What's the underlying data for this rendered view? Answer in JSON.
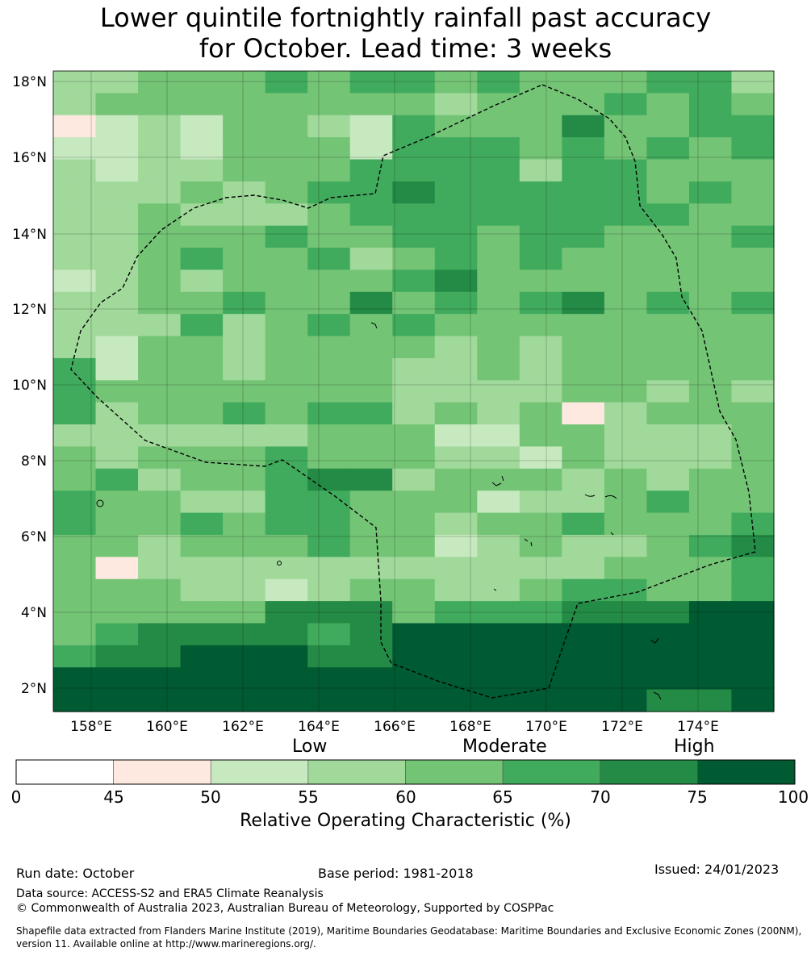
{
  "title_line1": "Lower quintile fortnightly rainfall past accuracy",
  "title_line2": "for October. Lead time: 3 weeks",
  "lat_labels": [
    "18°N",
    "16°N",
    "14°N",
    "12°N",
    "10°N",
    "8°N",
    "6°N",
    "4°N",
    "2°N"
  ],
  "lon_labels": [
    "158°E",
    "160°E",
    "162°E",
    "164°E",
    "166°E",
    "168°E",
    "170°E",
    "172°E",
    "174°E"
  ],
  "categories": {
    "low": "Low",
    "moderate": "Moderate",
    "high": "High"
  },
  "colorbar": {
    "ticks": [
      "0",
      "45",
      "50",
      "55",
      "60",
      "65",
      "70",
      "75",
      "100"
    ],
    "colors": [
      "#ffffff",
      "#fee9e1",
      "#c7e9c0",
      "#a1d99b",
      "#74c476",
      "#41ab5d",
      "#238b45",
      "#005a32"
    ],
    "caption": "Relative Operating Characteristic (%)"
  },
  "grid_colors": [
    "#fee9e1",
    "#c7e9c0",
    "#a1d99b",
    "#74c476",
    "#41ab5d",
    "#238b45",
    "#005a32"
  ],
  "grid_rows": [
    "22333434434333442",
    "23333333323334343",
    "01213321433353344",
    "11213331444343434",
    "21223334444244333",
    "22232344544444343",
    "22322234444444433",
    "22333433443443334",
    "22343342343433333",
    "12323333453333333",
    "22334335343453434",
    "22242343433333333",
    "21332333323233333",
    "41332333223233333",
    "43333333222233232",
    "42334344232302333",
    "22222233311332223",
    "32333433322132223",
    "34233455233323233",
    "43322443331223433",
    "43343443323343334",
    "33233343312322345",
    "30222222222223334",
    "33322123322344334",
    "33333555344455566",
    "34555545666666666",
    "45566655666666666",
    "66666666666666666",
    "66666666666666556"
  ],
  "footer": {
    "run_date": "Run date: October",
    "base_period": "Base period: 1981-2018",
    "issued": "Issued: 24/01/2023",
    "data_source": "Data source: ACCESS-S2 and ERA5 Climate Reanalysis",
    "copyright": "© Commonwealth of Australia 2023, Australian Bureau of Meteorology, Supported by COSPPac",
    "shapefile_line1": "Shapefile data extracted from Flanders Marine Institute (2019), Maritime Boundaries Geodatabase: Maritime Boundaries and Exclusive Economic Zones (200NM),",
    "shapefile_line2": "version 11. Available online at http://www.marineregions.org/."
  }
}
